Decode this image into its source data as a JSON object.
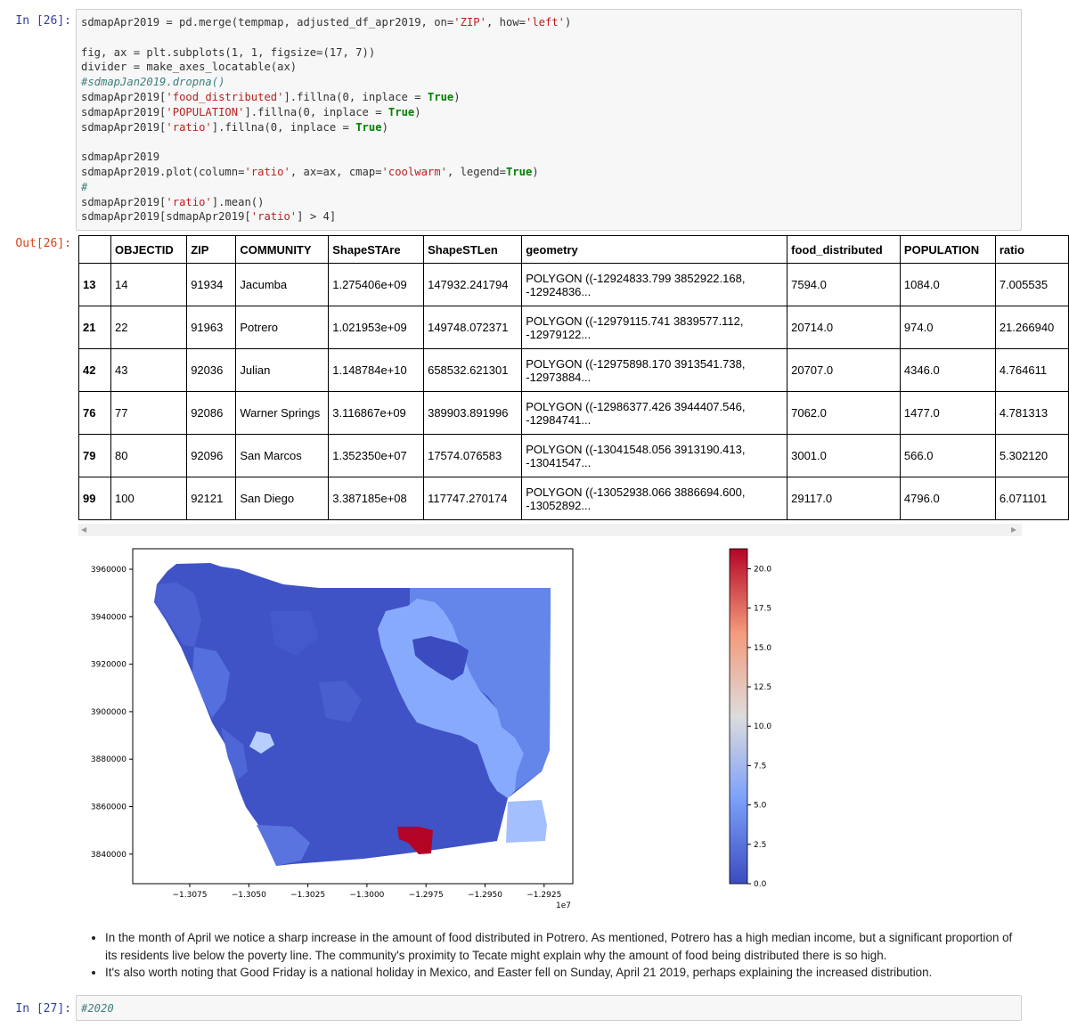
{
  "cells": {
    "in26": {
      "prompt": "In [26]:",
      "lines": [
        "sdmapApr2019 = pd.merge(tempmap, adjusted_df_apr2019, on='ZIP', how='left')",
        "",
        "fig, ax = plt.subplots(1, 1, figsize=(17, 7))",
        "divider = make_axes_locatable(ax)",
        "#sdmapJan2019.dropna()",
        "sdmapApr2019['food_distributed'].fillna(0, inplace = True)",
        "sdmapApr2019['POPULATION'].fillna(0, inplace = True)",
        "sdmapApr2019['ratio'].fillna(0, inplace = True)",
        "",
        "sdmapApr2019",
        "sdmapApr2019.plot(column='ratio', ax=ax, cmap='coolwarm', legend=True)",
        "#",
        "sdmapApr2019['ratio'].mean()",
        "sdmapApr2019[sdmapApr2019['ratio'] > 4]"
      ]
    },
    "out26": {
      "prompt": "Out[26]:"
    },
    "in27": {
      "prompt": "In [27]:",
      "code": "#2020"
    }
  },
  "dataframe": {
    "columns": [
      "",
      "OBJECTID",
      "ZIP",
      "COMMUNITY",
      "ShapeSTAre",
      "ShapeSTLen",
      "geometry",
      "food_distributed",
      "POPULATION",
      "ratio"
    ],
    "rows": [
      [
        "13",
        "14",
        "91934",
        "Jacumba",
        "1.275406e+09",
        "147932.241794",
        "POLYGON ((-12924833.799 3852922.168, -12924836...",
        "7594.0",
        "1084.0",
        "7.005535"
      ],
      [
        "21",
        "22",
        "91963",
        "Potrero",
        "1.021953e+09",
        "149748.072371",
        "POLYGON ((-12979115.741 3839577.112, -12979122...",
        "20714.0",
        "974.0",
        "21.266940"
      ],
      [
        "42",
        "43",
        "92036",
        "Julian",
        "1.148784e+10",
        "658532.621301",
        "POLYGON ((-12975898.170 3913541.738, -12973884...",
        "20707.0",
        "4346.0",
        "4.764611"
      ],
      [
        "76",
        "77",
        "92086",
        "Warner Springs",
        "3.116867e+09",
        "389903.891996",
        "POLYGON ((-12986377.426 3944407.546, -12984741...",
        "7062.0",
        "1477.0",
        "4.781313"
      ],
      [
        "79",
        "80",
        "92096",
        "San Marcos",
        "1.352350e+07",
        "17574.076583",
        "POLYGON ((-13041548.056 3913190.413, -13041547...",
        "3001.0",
        "566.0",
        "5.302120"
      ],
      [
        "99",
        "100",
        "92121",
        "San Diego",
        "3.387185e+08",
        "117747.270174",
        "POLYGON ((-13052938.066 3886694.600, -13052892...",
        "29117.0",
        "4796.0",
        "6.071101"
      ]
    ]
  },
  "chart_data": {
    "type": "choropleth",
    "cmap": "coolwarm",
    "y_ticks": [
      "3960000",
      "3940000",
      "3920000",
      "3900000",
      "3880000",
      "3860000",
      "3840000"
    ],
    "x_ticks": [
      "−1.3075",
      "−1.3050",
      "−1.3025",
      "−1.3000",
      "−1.2975",
      "−1.2950",
      "−1.2925"
    ],
    "x_offset": "1e7",
    "colorbar_ticks": [
      "20.0",
      "17.5",
      "15.0",
      "12.5",
      "10.0",
      "7.5",
      "5.0",
      "2.5",
      "0.0"
    ],
    "colorbar_range": [
      0,
      21.27
    ]
  },
  "markdown": {
    "bullets": [
      "In the month of April we notice a sharp increase in the amount of food distributed in Potrero. As mentioned, Potrero has a high median income, but a significant proportion of its residents live below the poverty line. The community's proximity to Tecate might explain why the amount of food being distributed there is so high.",
      "It's also worth noting that Good Friday is a national holiday in Mexico, and Easter fell on Sunday, April 21 2019, perhaps explaining the increased distribution."
    ]
  },
  "colors": {
    "prompt_in": "#303f9f",
    "prompt_out": "#d84315",
    "map_dark": "#3b4cc0",
    "map_hot": "#b40426"
  }
}
